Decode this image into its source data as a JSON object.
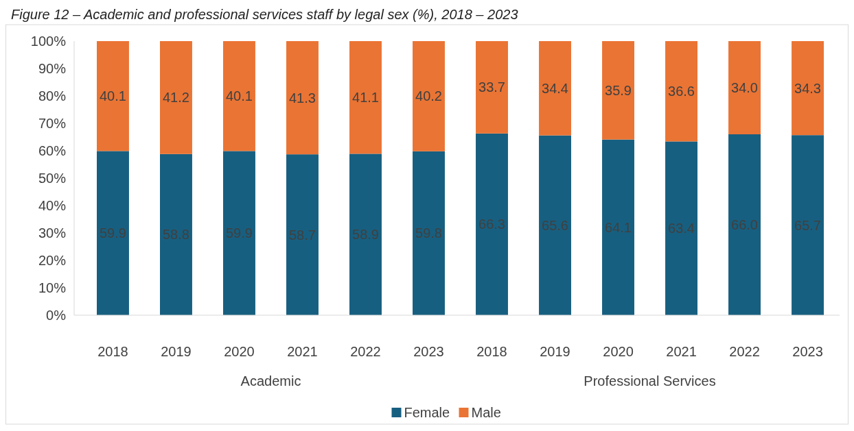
{
  "chart_data": {
    "type": "bar",
    "stacked": true,
    "title": "Figure 12 – Academic and professional services staff by legal sex (%), 2018 – 2023",
    "categories": [
      "2018",
      "2019",
      "2020",
      "2021",
      "2022",
      "2023",
      "2018",
      "2019",
      "2020",
      "2021",
      "2022",
      "2023"
    ],
    "series": [
      {
        "name": "Female",
        "color": "#175f80",
        "values": [
          59.9,
          58.8,
          59.9,
          58.7,
          58.9,
          59.8,
          66.3,
          65.6,
          64.1,
          63.4,
          66.0,
          65.7
        ],
        "value_labels": [
          "59.9",
          "58.8",
          "59.9",
          "58.7",
          "58.9",
          "59.8",
          "66.3",
          "65.6",
          "64.1",
          "63.4",
          "66.0",
          "65.7"
        ]
      },
      {
        "name": "Male",
        "color": "#ea7434",
        "values": [
          40.1,
          41.2,
          40.1,
          41.3,
          41.1,
          40.2,
          33.7,
          34.4,
          35.9,
          36.6,
          34.0,
          34.3
        ],
        "value_labels": [
          "40.1",
          "41.2",
          "40.1",
          "41.3",
          "41.1",
          "40.2",
          "33.7",
          "34.4",
          "35.9",
          "36.6",
          "34.0",
          "34.3"
        ]
      }
    ],
    "annotations": [
      "Academic",
      "Professional Services"
    ],
    "ylim": [
      0,
      100
    ],
    "yticks": [
      {
        "value": 0,
        "label": "0%"
      },
      {
        "value": 10,
        "label": "10%"
      },
      {
        "value": 20,
        "label": "20%"
      },
      {
        "value": 30,
        "label": "30%"
      },
      {
        "value": 40,
        "label": "40%"
      },
      {
        "value": 50,
        "label": "50%"
      },
      {
        "value": 60,
        "label": "60%"
      },
      {
        "value": 70,
        "label": "70%"
      },
      {
        "value": 80,
        "label": "80%"
      },
      {
        "value": 90,
        "label": "90%"
      },
      {
        "value": 100,
        "label": "100%"
      }
    ],
    "grid": false,
    "legend": "bottom"
  }
}
